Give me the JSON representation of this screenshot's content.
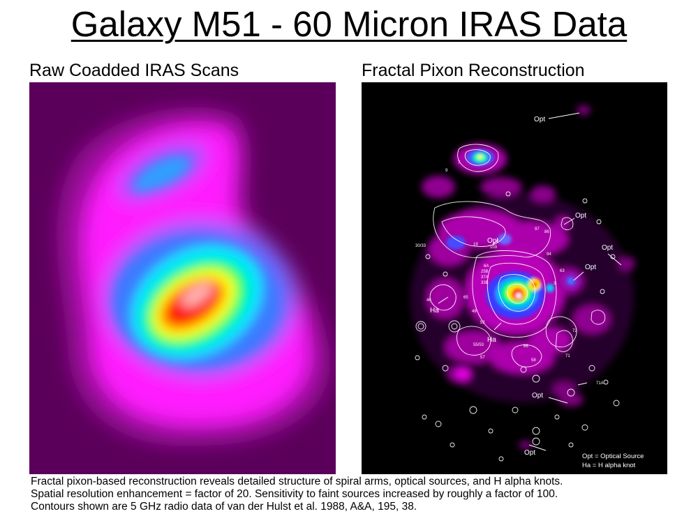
{
  "page": {
    "title": "Galaxy M51 - 60 Micron IRAS Data"
  },
  "left_panel": {
    "subtitle": "Raw Coadded IRAS Scans"
  },
  "right_panel": {
    "subtitle": "Fractal Pixon Reconstruction",
    "labels": {
      "opt_top": "Opt",
      "opt_upper_mid": "Opt",
      "opt_upper_right": "Opt",
      "opt_mid_right": "Opt",
      "opt_center": "Opt",
      "opt_lower": "Opt",
      "opt_bottom": "Opt",
      "ha_left": "Ha",
      "ha_bottom": "Ha",
      "n7": "7",
      "n9": "9",
      "n30_33": "30/33",
      "n19": "19",
      "n103": "103",
      "n97": "97",
      "n86": "86",
      "n63": "63",
      "n6a": "6A",
      "n25b": "25B",
      "n37a": "37A",
      "n33b": "33B",
      "n65": "65",
      "n49": "49",
      "n46": "46",
      "n52": "52",
      "n55_53": "55/53",
      "n57": "57",
      "n66": "66",
      "n58": "58",
      "n72": "72",
      "n71": "71",
      "n71a": "71A",
      "n94": "94",
      "n3": "3"
    },
    "legend": {
      "line1": "Opt = Optical Source",
      "line2": "Ha = H alpha knot"
    }
  },
  "caption": {
    "line1": "Fractal pixon-based reconstruction reveals detailed structure of spiral arms, optical sources, and H alpha knots.",
    "line2": "Spatial resolution enhancement = factor of 20.   Sensitivity to faint sources increased by roughly a factor of 100.",
    "line3": "Contours shown are 5 GHz radio data of van der Hulst et al. 1988, A&A, 195, 38."
  },
  "colors": {
    "background": "#ffffff",
    "left_panel_bg": "#6b006b",
    "right_panel_bg": "#000000",
    "magenta": "#ff00ff",
    "peak": "#ff0000"
  }
}
